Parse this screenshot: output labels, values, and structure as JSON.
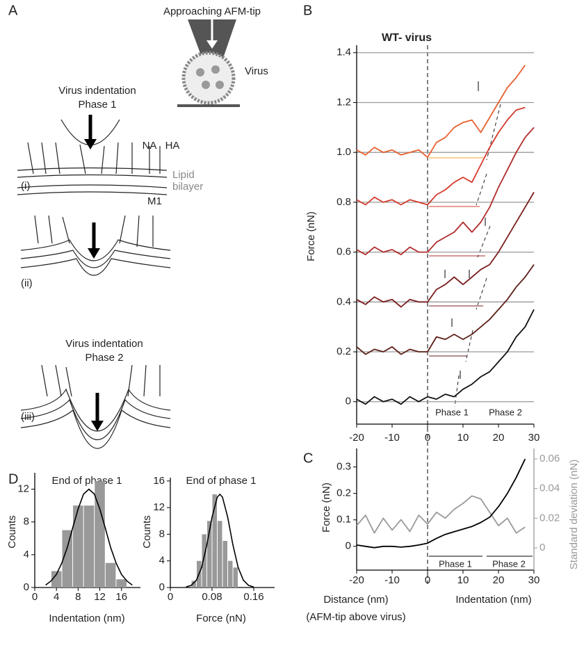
{
  "panel_labels": [
    "A",
    "B",
    "C",
    "D"
  ],
  "diagram": {
    "tip_label": "Approaching AFM-tip",
    "virus_label": "Virus",
    "phase1_title": [
      "Virus indentation",
      "Phase 1"
    ],
    "phase2_title": [
      "Virus indentation",
      "Phase 2"
    ],
    "na": "NA",
    "ha": "HA",
    "lipid": [
      "Lipid",
      "bilayer"
    ],
    "m1": "M1",
    "steps": [
      "(i)",
      "(ii)",
      "(iii)"
    ]
  },
  "chart_data": [
    {
      "type": "line",
      "title": "WT- virus",
      "y_label": "Force (nN)",
      "phase_labels": [
        "Phase 1",
        "Phase 2"
      ],
      "x": [
        -20,
        -17.5,
        -15,
        -12.5,
        -10,
        -7.5,
        -5,
        -2.5,
        0,
        2.5,
        5,
        7.5,
        10,
        12.5,
        15,
        17.5,
        20,
        22.5,
        25,
        27.5,
        30
      ],
      "series": [
        {
          "color": "#111111",
          "values": [
            0.01,
            -0.01,
            0.02,
            0.0,
            0.01,
            -0.01,
            0.02,
            0.0,
            0.02,
            0.01,
            0.03,
            0.02,
            0.05,
            0.07,
            0.1,
            0.12,
            0.16,
            0.2,
            0.26,
            0.3,
            0.37
          ]
        },
        {
          "color": "#5b1f17",
          "values": [
            0.22,
            0.19,
            0.21,
            0.2,
            0.22,
            0.19,
            0.21,
            0.2,
            0.2,
            0.26,
            0.25,
            0.27,
            0.25,
            0.27,
            0.3,
            0.33,
            0.37,
            0.41,
            0.46,
            0.5,
            0.55
          ]
        },
        {
          "color": "#7a1c1c",
          "values": [
            0.41,
            0.39,
            0.42,
            0.4,
            0.41,
            0.38,
            0.41,
            0.4,
            0.4,
            0.45,
            0.47,
            0.5,
            0.47,
            0.5,
            0.53,
            0.55,
            0.6,
            0.66,
            0.72,
            0.78,
            0.84
          ]
        },
        {
          "color": "#b02b2b",
          "values": [
            0.61,
            0.59,
            0.62,
            0.6,
            0.61,
            0.59,
            0.62,
            0.6,
            0.6,
            0.64,
            0.66,
            0.68,
            0.72,
            0.68,
            0.72,
            0.78,
            0.86,
            0.93,
            1.0,
            1.06,
            1.1
          ]
        },
        {
          "color": "#d63a2c",
          "values": [
            0.81,
            0.79,
            0.82,
            0.8,
            0.81,
            0.79,
            0.81,
            0.8,
            0.79,
            0.83,
            0.85,
            0.88,
            0.9,
            0.88,
            0.95,
            1.02,
            1.08,
            1.13,
            1.17,
            1.18,
            null
          ]
        },
        {
          "color": "#e8602e",
          "values": [
            1.01,
            0.99,
            1.02,
            1.0,
            1.01,
            0.99,
            1.0,
            1.01,
            0.98,
            1.04,
            1.06,
            1.1,
            1.12,
            1.13,
            1.08,
            1.14,
            1.2,
            1.26,
            1.3,
            1.35,
            null
          ]
        }
      ],
      "xlim": [
        -20,
        30
      ],
      "xticks": [
        -20,
        -10,
        0,
        10,
        20,
        30
      ],
      "ylim": [
        -0.09,
        1.43
      ],
      "yticks": [
        0,
        0.2,
        0.4,
        0.6,
        0.8,
        {
          "value": 1,
          "label": "1.0"
        },
        1.2,
        1.4
      ],
      "grid": true
    },
    {
      "type": "line",
      "y_label": "Force (nN)",
      "y2_label": "Standard deviation (nN)",
      "x_label": "Distance (nm)",
      "x_label_2": "Indentation (nm)",
      "x_note": "(AFM-tip above virus)",
      "phase_labels": [
        "Phase 1",
        "Phase 2"
      ],
      "x": [
        -20,
        -17.5,
        -15,
        -12.5,
        -10,
        -7.5,
        -5,
        -2.5,
        0,
        2.5,
        5,
        7.5,
        10,
        12.5,
        15,
        17.5,
        20,
        22.5,
        25,
        27.5
      ],
      "series": [
        {
          "color": "#999999",
          "axis": "y2",
          "values": [
            0.015,
            0.022,
            0.01,
            0.02,
            0.012,
            0.019,
            0.011,
            0.022,
            0.016,
            0.024,
            0.02,
            0.026,
            0.03,
            0.035,
            0.033,
            0.024,
            0.015,
            0.02,
            0.01,
            0.014
          ]
        },
        {
          "color": "#000000",
          "values": [
            0.005,
            0.0,
            -0.005,
            0.0,
            0.0,
            -0.003,
            0.0,
            0.005,
            0.012,
            0.03,
            0.045,
            0.055,
            0.065,
            0.075,
            0.09,
            0.11,
            0.15,
            0.2,
            0.26,
            0.33
          ]
        }
      ],
      "xlim": [
        -20,
        30
      ],
      "xticks": [
        -20,
        -10,
        0,
        10,
        20,
        30
      ],
      "ylim": [
        -0.09,
        0.37
      ],
      "yticks": [
        0,
        0.1,
        0.2,
        0.3
      ],
      "y2lim": [
        -0.015,
        0.067
      ],
      "y2ticks": [
        0,
        0.02,
        0.04,
        0.06
      ]
    },
    {
      "type": "histogram",
      "title": "End of phase 1",
      "x_label": "Indentation (nm)",
      "y_label": "Counts",
      "color": "#999999",
      "bins": [
        3,
        5,
        7,
        9,
        11,
        13,
        15,
        17
      ],
      "values": [
        2,
        7,
        10,
        10,
        13,
        3,
        1
      ],
      "fit": {
        "color": "#000000",
        "x": [
          2,
          3,
          4,
          5,
          6,
          7,
          8,
          9,
          10,
          11,
          12,
          13,
          14,
          15,
          16,
          17,
          18
        ],
        "values": [
          0.3,
          0.8,
          1.6,
          3.0,
          4.9,
          7.3,
          9.6,
          11.4,
          12,
          11.4,
          9.6,
          7.3,
          4.9,
          3.0,
          1.6,
          0.8,
          0.3
        ]
      },
      "xlim": [
        0,
        19.5
      ],
      "xticks": [
        0,
        4,
        8,
        12,
        16
      ],
      "ylim": [
        0,
        14
      ],
      "yticks": [
        0,
        4,
        8,
        12
      ]
    },
    {
      "type": "histogram",
      "title": "End of phase 1",
      "x_label": "Force (nN)",
      "y_label": "Counts",
      "color": "#999999",
      "bins": [
        0.04,
        0.05,
        0.06,
        0.07,
        0.08,
        0.09,
        0.1,
        0.11,
        0.12,
        0.13
      ],
      "values": [
        1,
        4,
        8,
        10,
        14,
        10,
        7,
        4,
        3
      ],
      "fit": {
        "color": "#000000",
        "x": [
          0.03,
          0.04,
          0.05,
          0.06,
          0.07,
          0.08,
          0.09,
          0.095,
          0.1,
          0.11,
          0.12,
          0.13,
          0.14,
          0.15,
          0.16
        ],
        "values": [
          0.07,
          0.32,
          1.11,
          3.03,
          6.41,
          10.57,
          13.57,
          14,
          13.57,
          10.57,
          6.41,
          3.03,
          1.11,
          0.32,
          0.07
        ]
      },
      "xlim": [
        0,
        0.2
      ],
      "xticks": [
        0,
        0.08,
        0.16
      ],
      "ylim": [
        0,
        16.5
      ],
      "yticks": [
        0,
        4,
        8,
        12,
        16
      ]
    }
  ]
}
